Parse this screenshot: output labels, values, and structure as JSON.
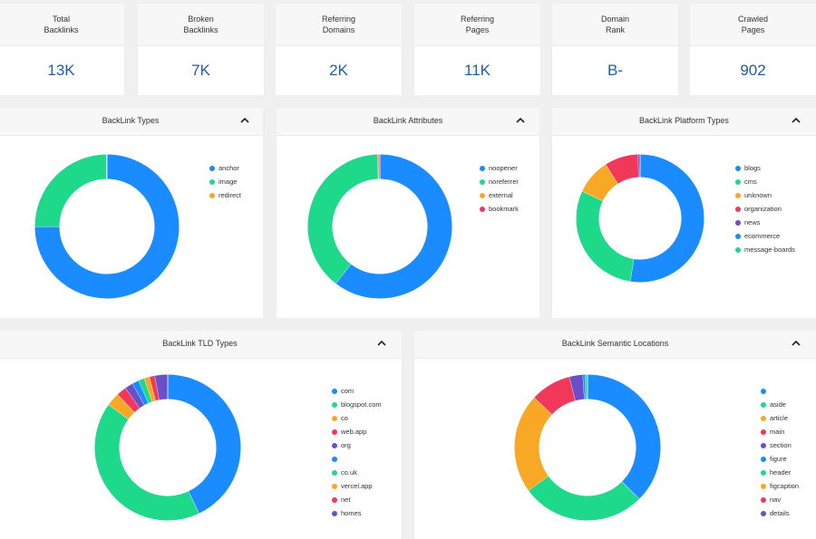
{
  "stats": [
    {
      "line1": "Total",
      "line2": "Backlinks",
      "value": "13K"
    },
    {
      "line1": "Broken",
      "line2": "Backlinks",
      "value": "7K"
    },
    {
      "line1": "Referring",
      "line2": "Domains",
      "value": "2K"
    },
    {
      "line1": "Referring",
      "line2": "Pages",
      "value": "11K"
    },
    {
      "line1": "Domain",
      "line2": "Rank",
      "value": "B-"
    },
    {
      "line1": "Crawled",
      "line2": "Pages",
      "value": "902"
    }
  ],
  "colors": {
    "blue": "#1a8cff",
    "green": "#1ed98a",
    "orange": "#f9a825",
    "red": "#f2385a",
    "purple": "#6a4fc9",
    "value_text": "#1f5da6"
  },
  "charts": [
    {
      "title": "BackLink Types",
      "legend": [
        {
          "label": "anchor",
          "color": "#1a8cff"
        },
        {
          "label": "image",
          "color": "#1ed98a"
        },
        {
          "label": "redirect",
          "color": "#f9a825"
        }
      ],
      "slices": [
        {
          "value": 75.0,
          "color": "#1a8cff"
        },
        {
          "value": 24.9,
          "color": "#1ed98a"
        },
        {
          "value": 0.1,
          "color": "#f9a825"
        }
      ]
    },
    {
      "title": "BackLink Attributes",
      "legend": [
        {
          "label": "noopener",
          "color": "#1a8cff"
        },
        {
          "label": "noreferrer",
          "color": "#1ed98a"
        },
        {
          "label": "external",
          "color": "#f9a825"
        },
        {
          "label": "bookmark",
          "color": "#f2385a"
        }
      ],
      "slices": [
        {
          "value": 60.5,
          "color": "#1a8cff"
        },
        {
          "value": 39.0,
          "color": "#1ed98a"
        },
        {
          "value": 0.2,
          "color": "#f9a825"
        },
        {
          "value": 0.3,
          "color": "#f2385a"
        }
      ]
    },
    {
      "title": "BackLink Platform Types",
      "legend": [
        {
          "label": "blogs",
          "color": "#1a8cff"
        },
        {
          "label": "cms",
          "color": "#1ed98a"
        },
        {
          "label": "unknown",
          "color": "#f9a825"
        },
        {
          "label": "organization",
          "color": "#f2385a"
        },
        {
          "label": "news",
          "color": "#6a4fc9"
        },
        {
          "label": "ecommerce",
          "color": "#1a8cff"
        },
        {
          "label": "message-boards",
          "color": "#1ed98a"
        }
      ],
      "slices": [
        {
          "value": 52.5,
          "color": "#1a8cff"
        },
        {
          "value": 29.5,
          "color": "#1ed98a"
        },
        {
          "value": 9.0,
          "color": "#f9a825"
        },
        {
          "value": 8.5,
          "color": "#f2385a"
        },
        {
          "value": 0.5,
          "color": "#6a4fc9"
        }
      ]
    },
    {
      "title": "BackLink TLD Types",
      "legend": [
        {
          "label": "com",
          "color": "#1a8cff"
        },
        {
          "label": "blogspot.com",
          "color": "#1ed98a"
        },
        {
          "label": "co",
          "color": "#f9a825"
        },
        {
          "label": "web.app",
          "color": "#f2385a"
        },
        {
          "label": "org",
          "color": "#6a4fc9"
        },
        {
          "label": "",
          "color": "#1a8cff"
        },
        {
          "label": "co.uk",
          "color": "#1ed98a"
        },
        {
          "label": "vercel.app",
          "color": "#f9a825"
        },
        {
          "label": "net",
          "color": "#f2385a"
        },
        {
          "label": "homes",
          "color": "#6a4fc9"
        }
      ],
      "slices": [
        {
          "value": 43.0,
          "color": "#1a8cff"
        },
        {
          "value": 42.0,
          "color": "#1ed98a"
        },
        {
          "value": 3.0,
          "color": "#f9a825"
        },
        {
          "value": 2.2,
          "color": "#f2385a"
        },
        {
          "value": 1.8,
          "color": "#6a4fc9"
        },
        {
          "value": 1.5,
          "color": "#1a8cff"
        },
        {
          "value": 1.3,
          "color": "#1ed98a"
        },
        {
          "value": 1.2,
          "color": "#f9a825"
        },
        {
          "value": 1.2,
          "color": "#f2385a"
        },
        {
          "value": 2.8,
          "color": "#6a4fc9"
        }
      ]
    },
    {
      "title": "BackLink Semantic Locations",
      "legend": [
        {
          "label": "",
          "color": "#1a8cff"
        },
        {
          "label": "aside",
          "color": "#1ed98a"
        },
        {
          "label": "article",
          "color": "#f9a825"
        },
        {
          "label": "main",
          "color": "#f2385a"
        },
        {
          "label": "section",
          "color": "#6a4fc9"
        },
        {
          "label": "figure",
          "color": "#1a8cff"
        },
        {
          "label": "header",
          "color": "#1ed98a"
        },
        {
          "label": "figcaption",
          "color": "#f9a825"
        },
        {
          "label": "nav",
          "color": "#f2385a"
        },
        {
          "label": "details",
          "color": "#6a4fc9"
        }
      ],
      "slices": [
        {
          "value": 37.5,
          "color": "#1a8cff"
        },
        {
          "value": 27.5,
          "color": "#1ed98a"
        },
        {
          "value": 22.0,
          "color": "#f9a825"
        },
        {
          "value": 9.0,
          "color": "#f2385a"
        },
        {
          "value": 3.0,
          "color": "#6a4fc9"
        },
        {
          "value": 0.5,
          "color": "#1a8cff"
        },
        {
          "value": 0.5,
          "color": "#1ed98a"
        }
      ]
    }
  ]
}
